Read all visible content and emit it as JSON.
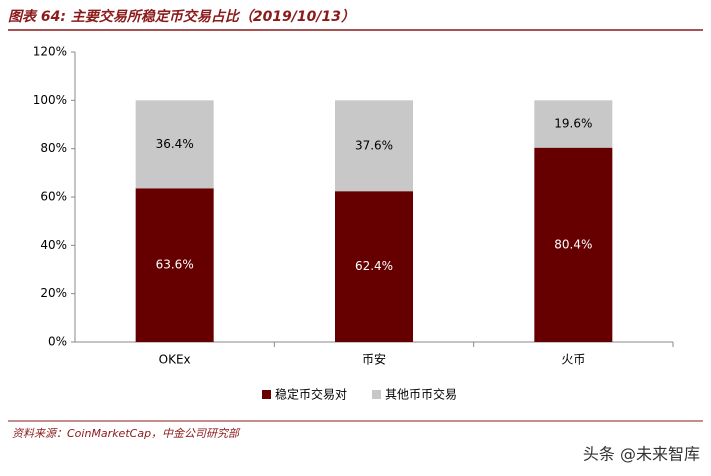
{
  "chart_data": {
    "type": "stacked_bar",
    "title": "图表 64: 主要交易所稳定币交易占比（2019/10/13）",
    "categories": [
      "OKEx",
      "币安",
      "火币"
    ],
    "series": [
      {
        "name": "稳定币交易对",
        "color": "#660000",
        "values": [
          63.6,
          62.4,
          80.4
        ],
        "value_labels": [
          "63.6%",
          "62.4%",
          "80.4%"
        ]
      },
      {
        "name": "其他币币交易",
        "color": "#c8c8c8",
        "values": [
          36.4,
          37.6,
          19.6
        ],
        "value_labels": [
          "36.4%",
          "37.6%",
          "19.6%"
        ]
      }
    ],
    "ylim": [
      0,
      120
    ],
    "yticks": [
      {
        "value": 0,
        "label": "0%"
      },
      {
        "value": 20,
        "label": "20%"
      },
      {
        "value": 40,
        "label": "40%"
      },
      {
        "value": 60,
        "label": "60%"
      },
      {
        "value": 80,
        "label": "80%"
      },
      {
        "value": 100,
        "label": "100%"
      },
      {
        "value": 120,
        "label": "120%"
      }
    ],
    "grid": false,
    "legend": "bottom",
    "source": "资料来源：CoinMarketCap，中金公司研究部",
    "watermark": "头条 @未来智库"
  }
}
